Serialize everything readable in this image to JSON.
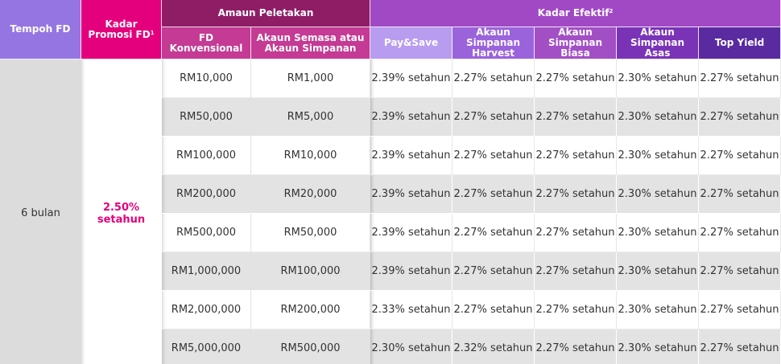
{
  "headers": {
    "tempoh": "Tempoh FD",
    "promo": "Kadar Promosi FD",
    "promo_sup": "1",
    "amaun": "Amaun Peletakan",
    "kadar": "Kadar Efektif",
    "kadar_sup": "2",
    "fd_konv": "FD Konvensional",
    "akaun_semasa": "Akaun Semasa atau Akaun Simpanan",
    "paysave": "Pay&Save",
    "harvest": "Akaun Simpanan Harvest",
    "biasa": "Akaun Simpanan Biasa",
    "asas": "Akaun Simpanan Asas",
    "topyield": "Top Yield"
  },
  "tempoh_value": "6 bulan",
  "promo_rate": "2.50% setahun",
  "rows": [
    {
      "fd": "RM10,000",
      "akaun": "RM1,000",
      "paysave": "2.39% setahun",
      "harvest": "2.27% setahun",
      "biasa": "2.27% setahun",
      "asas": "2.30% setahun",
      "topyield": "2.27% setahun"
    },
    {
      "fd": "RM50,000",
      "akaun": "RM5,000",
      "paysave": "2.39% setahun",
      "harvest": "2.27% setahun",
      "biasa": "2.27% setahun",
      "asas": "2.30% setahun",
      "topyield": "2.27% setahun"
    },
    {
      "fd": "RM100,000",
      "akaun": "RM10,000",
      "paysave": "2.39% setahun",
      "harvest": "2.27% setahun",
      "biasa": "2.27% setahun",
      "asas": "2.30% setahun",
      "topyield": "2.27% setahun"
    },
    {
      "fd": "RM200,000",
      "akaun": "RM20,000",
      "paysave": "2.39% setahun",
      "harvest": "2.27% setahun",
      "biasa": "2.27% setahun",
      "asas": "2.30% setahun",
      "topyield": "2.27% setahun"
    },
    {
      "fd": "RM500,000",
      "akaun": "RM50,000",
      "paysave": "2.39% setahun",
      "harvest": "2.27% setahun",
      "biasa": "2.27% setahun",
      "asas": "2.30% setahun",
      "topyield": "2.27% setahun"
    },
    {
      "fd": "RM1,000,000",
      "akaun": "RM100,000",
      "paysave": "2.39% setahun",
      "harvest": "2.27% setahun",
      "biasa": "2.27% setahun",
      "asas": "2.30% setahun",
      "topyield": "2.27% setahun"
    },
    {
      "fd": "RM2,000,000",
      "akaun": "RM200,000",
      "paysave": "2.33% setahun",
      "harvest": "2.27% setahun",
      "biasa": "2.27% setahun",
      "asas": "2.30% setahun",
      "topyield": "2.27% setahun"
    },
    {
      "fd": "RM5,000,000",
      "akaun": "RM500,000",
      "paysave": "2.30% setahun",
      "harvest": "2.32% setahun",
      "biasa": "2.27% setahun",
      "asas": "2.30% setahun",
      "topyield": "2.27% setahun"
    }
  ],
  "colors": {
    "tempoh_header": "#9575e2",
    "promo_header": "#e4007c",
    "amaun_header": "#8e1d66",
    "amaun_sub_header": "#c43a94",
    "kadar_header": "#a149c4",
    "paysave_header": "#b79cf0",
    "harvest_header": "#9a63dc",
    "biasa_header": "#a24fc6",
    "asas_header": "#7a33b7",
    "topyield_header": "#5a2aa0",
    "promo_text": "#e4007c",
    "alt_row": "#e3e3e3"
  }
}
